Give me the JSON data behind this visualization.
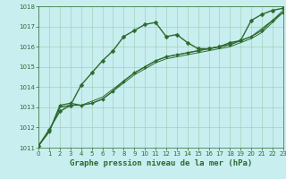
{
  "title": "Graphe pression niveau de la mer (hPa)",
  "bg_color": "#c8eef0",
  "grid_color": "#99ccaa",
  "line_color": "#2d6a2d",
  "x_min": 0,
  "x_max": 23,
  "y_min": 1011,
  "y_max": 1018,
  "series": [
    {
      "x": [
        0,
        1,
        2,
        3,
        4,
        5,
        6,
        7,
        8,
        9,
        10,
        11,
        12,
        13,
        14,
        15,
        16,
        17,
        18,
        19,
        20,
        21,
        22,
        23
      ],
      "y": [
        1011.1,
        1011.9,
        1012.8,
        1013.1,
        1014.1,
        1014.7,
        1015.3,
        1015.8,
        1016.5,
        1016.8,
        1017.1,
        1017.2,
        1016.5,
        1016.6,
        1016.2,
        1015.9,
        1015.9,
        1016.0,
        1016.2,
        1016.3,
        1017.3,
        1017.6,
        1017.8,
        1017.9
      ],
      "marker": "D",
      "markersize": 2.5,
      "linewidth": 1.0,
      "zorder": 3
    },
    {
      "x": [
        0,
        1,
        2,
        3,
        4,
        5,
        6,
        7,
        8,
        9,
        10,
        11,
        12,
        13,
        14,
        15,
        16,
        17,
        18,
        19,
        20,
        21,
        22,
        23
      ],
      "y": [
        1011.1,
        1011.8,
        1013.1,
        1013.2,
        1013.1,
        1013.2,
        1013.4,
        1013.8,
        1014.3,
        1014.7,
        1015.0,
        1015.3,
        1015.5,
        1015.6,
        1015.7,
        1015.8,
        1015.9,
        1016.0,
        1016.1,
        1016.3,
        1016.5,
        1016.8,
        1017.3,
        1017.7
      ],
      "marker": "D",
      "markersize": 2.0,
      "linewidth": 0.9,
      "zorder": 2
    },
    {
      "x": [
        0,
        1,
        2,
        3,
        4,
        5,
        6,
        7,
        8,
        9,
        10,
        11,
        12,
        13,
        14,
        15,
        16,
        17,
        18,
        19,
        20,
        21,
        22,
        23
      ],
      "y": [
        1011.1,
        1011.8,
        1013.0,
        1013.1,
        1013.1,
        1013.2,
        1013.4,
        1013.8,
        1014.2,
        1014.6,
        1014.9,
        1015.2,
        1015.4,
        1015.5,
        1015.6,
        1015.7,
        1015.8,
        1015.9,
        1016.0,
        1016.2,
        1016.4,
        1016.7,
        1017.2,
        1017.7
      ],
      "marker": null,
      "markersize": 0,
      "linewidth": 0.7,
      "zorder": 1
    },
    {
      "x": [
        0,
        1,
        2,
        3,
        4,
        5,
        6,
        7,
        8,
        9,
        10,
        11,
        12,
        13,
        14,
        15,
        16,
        17,
        18,
        19,
        20,
        21,
        22,
        23
      ],
      "y": [
        1011.1,
        1011.8,
        1013.0,
        1013.1,
        1013.1,
        1013.3,
        1013.5,
        1013.9,
        1014.3,
        1014.7,
        1015.0,
        1015.3,
        1015.5,
        1015.6,
        1015.7,
        1015.8,
        1015.9,
        1016.0,
        1016.1,
        1016.3,
        1016.5,
        1016.9,
        1017.3,
        1017.8
      ],
      "marker": null,
      "markersize": 0,
      "linewidth": 0.7,
      "zorder": 1
    }
  ],
  "yticks": [
    1011,
    1012,
    1013,
    1014,
    1015,
    1016,
    1017,
    1018
  ],
  "xticks": [
    0,
    1,
    2,
    3,
    4,
    5,
    6,
    7,
    8,
    9,
    10,
    11,
    12,
    13,
    14,
    15,
    16,
    17,
    18,
    19,
    20,
    21,
    22,
    23
  ],
  "title_fontsize": 6.5,
  "tick_fontsize": 5.0,
  "tick_color": "#2d6a2d",
  "spine_color": "#2d6a2d"
}
